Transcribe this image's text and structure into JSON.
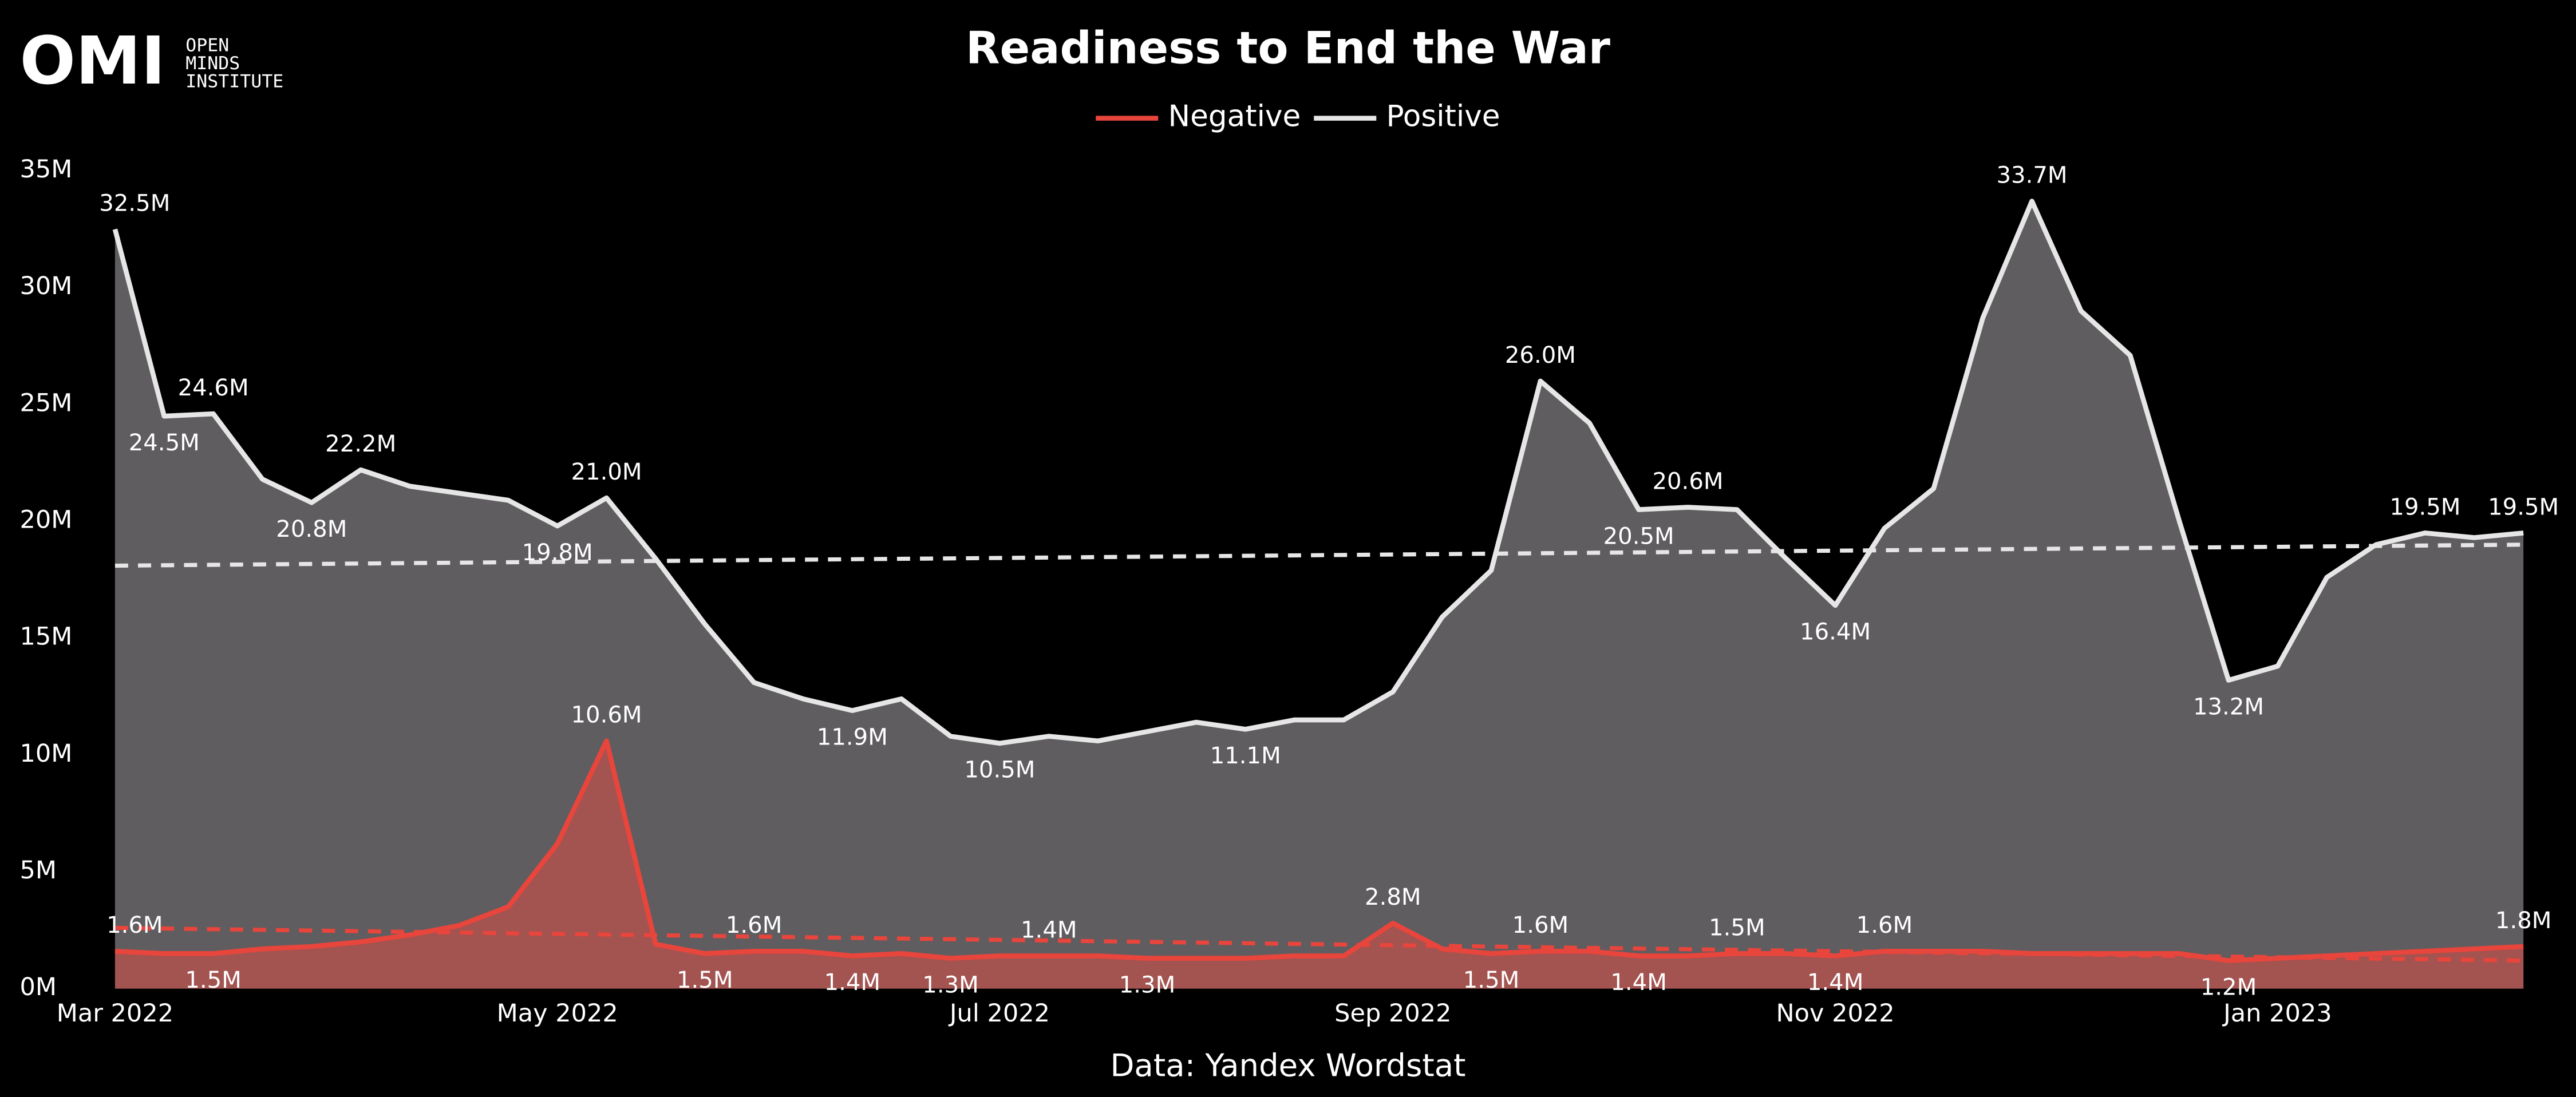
{
  "chart_data": {
    "type": "area",
    "title": "Readiness to End the War",
    "source": "Data: Yandex Wordstat",
    "logo": {
      "mark": "OMI",
      "name": [
        "OPEN",
        "MINDS",
        "INSTITUTE"
      ]
    },
    "legend": "top",
    "categories": [
      "Mar 2022",
      null,
      null,
      null,
      null,
      null,
      null,
      null,
      null,
      "May 2022",
      null,
      null,
      null,
      null,
      null,
      null,
      null,
      null,
      "Jul 2022",
      null,
      null,
      null,
      null,
      null,
      null,
      null,
      "Sep 2022",
      null,
      null,
      null,
      null,
      null,
      null,
      null,
      null,
      "Nov 2022",
      null,
      null,
      null,
      null,
      null,
      null,
      null,
      null,
      "Jan 2023",
      null,
      null,
      null,
      null,
      null
    ],
    "ylim": [
      0,
      35
    ],
    "yticks": [
      {
        "value": 0,
        "label": "0M"
      },
      {
        "value": 5,
        "label": "5M"
      },
      {
        "value": 10,
        "label": "10M"
      },
      {
        "value": 15,
        "label": "15M"
      },
      {
        "value": 20,
        "label": "20M"
      },
      {
        "value": 25,
        "label": "25M"
      },
      {
        "value": 30,
        "label": "30M"
      },
      {
        "value": 35,
        "label": "35M"
      }
    ],
    "series": [
      {
        "name": "Negative",
        "color": "#e8453c",
        "fill": "#c0504a",
        "values": [
          1.6,
          1.5,
          1.5,
          1.7,
          1.8,
          2.0,
          2.3,
          2.7,
          3.5,
          6.2,
          10.6,
          1.9,
          1.5,
          1.6,
          1.6,
          1.4,
          1.5,
          1.3,
          1.4,
          1.4,
          1.4,
          1.3,
          1.3,
          1.3,
          1.4,
          1.4,
          2.8,
          1.7,
          1.5,
          1.6,
          1.6,
          1.4,
          1.4,
          1.5,
          1.5,
          1.4,
          1.6,
          1.6,
          1.6,
          1.5,
          1.5,
          1.5,
          1.5,
          1.2,
          1.3,
          1.4,
          1.5,
          1.6,
          1.7,
          1.8
        ],
        "value_labels": [
          "1.6M",
          null,
          "1.5M",
          null,
          null,
          null,
          null,
          null,
          null,
          null,
          "10.6M",
          null,
          "1.5M",
          "1.6M",
          null,
          "1.4M",
          null,
          "1.3M",
          null,
          "1.4M",
          null,
          "1.3M",
          null,
          null,
          null,
          null,
          "2.8M",
          null,
          "1.5M",
          "1.6M",
          null,
          "1.4M",
          null,
          "1.5M",
          null,
          "1.4M",
          "1.6M",
          null,
          null,
          null,
          null,
          null,
          null,
          "1.2M",
          null,
          null,
          null,
          null,
          null,
          "1.8M"
        ],
        "trend": [
          2.6,
          1.2
        ]
      },
      {
        "name": "Positive",
        "color": "#e6e6e6",
        "fill": "#5f5d60",
        "values": [
          32.5,
          24.5,
          24.6,
          21.8,
          20.8,
          22.2,
          21.5,
          21.2,
          20.9,
          19.8,
          21.0,
          18.4,
          15.6,
          13.1,
          12.4,
          11.9,
          12.4,
          10.8,
          10.5,
          10.8,
          10.6,
          11.0,
          11.4,
          11.1,
          11.5,
          11.5,
          12.7,
          15.9,
          17.9,
          26.0,
          24.2,
          20.5,
          20.6,
          20.5,
          18.4,
          16.4,
          19.7,
          21.4,
          28.7,
          33.7,
          29.0,
          27.1,
          20.0,
          13.2,
          13.8,
          17.6,
          19.0,
          19.5,
          19.3,
          19.5
        ],
        "value_labels": [
          "32.5M",
          "24.5M",
          "24.6M",
          null,
          "20.8M",
          "22.2M",
          null,
          null,
          null,
          "19.8M",
          "21.0M",
          null,
          null,
          null,
          null,
          "11.9M",
          null,
          null,
          "10.5M",
          null,
          null,
          null,
          null,
          "11.1M",
          null,
          null,
          null,
          null,
          null,
          "26.0M",
          null,
          "20.5M",
          "20.6M",
          null,
          null,
          "16.4M",
          null,
          null,
          null,
          "33.7M",
          null,
          null,
          null,
          "13.2M",
          null,
          null,
          null,
          "19.5M",
          null,
          "19.5M"
        ],
        "trend": [
          18.1,
          19.0
        ]
      }
    ]
  }
}
